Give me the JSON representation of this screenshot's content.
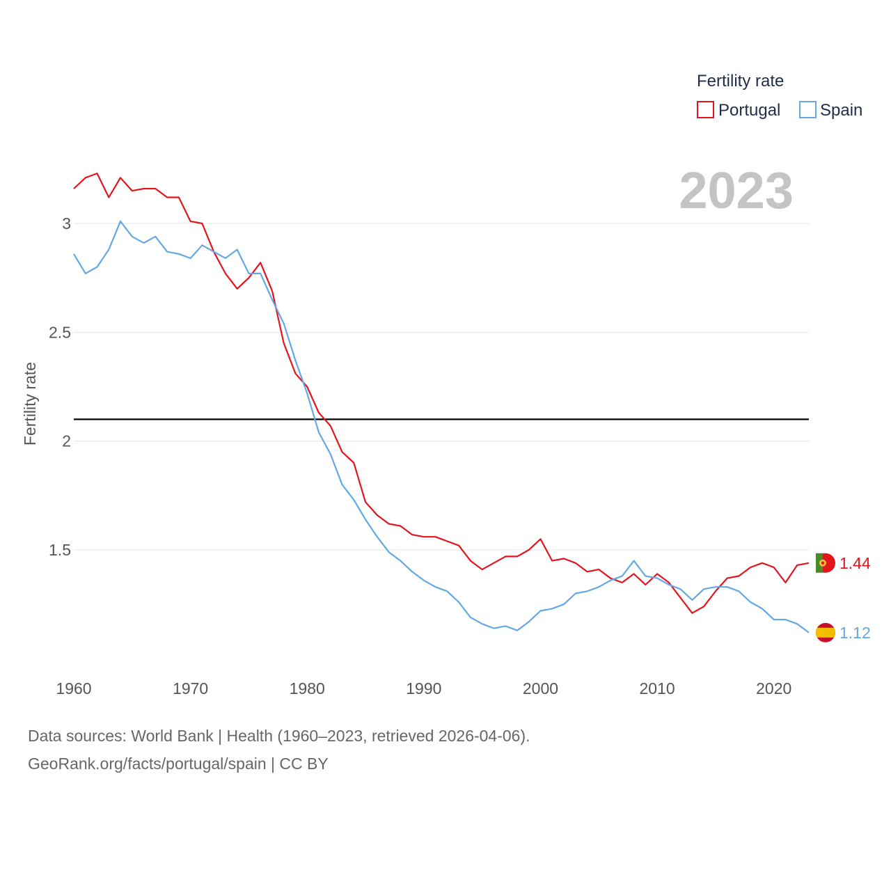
{
  "legend": {
    "title": "Fertility rate"
  },
  "year_label": "2023",
  "source": {
    "line1": "Data sources: World Bank | Health (1960–2023, retrieved 2026-04-06).",
    "line2": "GeoRank.org/facts/portugal/spain | CC BY"
  },
  "colors": {
    "portugal": "#e3141b",
    "spain": "#62a8e5",
    "reference": "#000000",
    "grid": "#e6e6e6"
  },
  "chart_data": {
    "type": "line",
    "title": "",
    "xlabel": "",
    "ylabel": "Fertility rate",
    "xlim": [
      1960,
      2023
    ],
    "ylim": [
      1.0,
      3.3
    ],
    "x_ticks": [
      1960,
      1970,
      1980,
      1990,
      2000,
      2010,
      2020
    ],
    "y_ticks": [
      1.5,
      2,
      2.5,
      3
    ],
    "y_tick_labels": [
      "1.5",
      "2",
      "2.5",
      "3"
    ],
    "reference_line": 2.1,
    "x": [
      1960,
      1961,
      1962,
      1963,
      1964,
      1965,
      1966,
      1967,
      1968,
      1969,
      1970,
      1971,
      1972,
      1973,
      1974,
      1975,
      1976,
      1977,
      1978,
      1979,
      1980,
      1981,
      1982,
      1983,
      1984,
      1985,
      1986,
      1987,
      1988,
      1989,
      1990,
      1991,
      1992,
      1993,
      1994,
      1995,
      1996,
      1997,
      1998,
      1999,
      2000,
      2001,
      2002,
      2003,
      2004,
      2005,
      2006,
      2007,
      2008,
      2009,
      2010,
      2011,
      2012,
      2013,
      2014,
      2015,
      2016,
      2017,
      2018,
      2019,
      2020,
      2021,
      2022,
      2023
    ],
    "series": [
      {
        "name": "Portugal",
        "end_label": "1.44",
        "values": [
          3.16,
          3.21,
          3.23,
          3.12,
          3.21,
          3.15,
          3.16,
          3.16,
          3.12,
          3.12,
          3.01,
          3.0,
          2.87,
          2.77,
          2.7,
          2.75,
          2.82,
          2.69,
          2.45,
          2.31,
          2.25,
          2.13,
          2.07,
          1.95,
          1.9,
          1.72,
          1.66,
          1.62,
          1.61,
          1.57,
          1.56,
          1.56,
          1.54,
          1.52,
          1.45,
          1.41,
          1.44,
          1.47,
          1.47,
          1.5,
          1.55,
          1.45,
          1.46,
          1.44,
          1.4,
          1.41,
          1.37,
          1.35,
          1.39,
          1.34,
          1.39,
          1.35,
          1.28,
          1.21,
          1.24,
          1.31,
          1.37,
          1.38,
          1.42,
          1.44,
          1.42,
          1.35,
          1.43,
          1.44
        ]
      },
      {
        "name": "Spain",
        "end_label": "1.12",
        "values": [
          2.86,
          2.77,
          2.8,
          2.88,
          3.01,
          2.94,
          2.91,
          2.94,
          2.87,
          2.86,
          2.84,
          2.9,
          2.87,
          2.84,
          2.88,
          2.77,
          2.77,
          2.65,
          2.54,
          2.37,
          2.22,
          2.04,
          1.94,
          1.8,
          1.73,
          1.64,
          1.56,
          1.49,
          1.45,
          1.4,
          1.36,
          1.33,
          1.31,
          1.26,
          1.19,
          1.16,
          1.14,
          1.15,
          1.13,
          1.17,
          1.22,
          1.23,
          1.25,
          1.3,
          1.31,
          1.33,
          1.36,
          1.38,
          1.45,
          1.38,
          1.37,
          1.34,
          1.32,
          1.27,
          1.32,
          1.33,
          1.33,
          1.31,
          1.26,
          1.23,
          1.18,
          1.18,
          1.16,
          1.12
        ]
      }
    ]
  }
}
